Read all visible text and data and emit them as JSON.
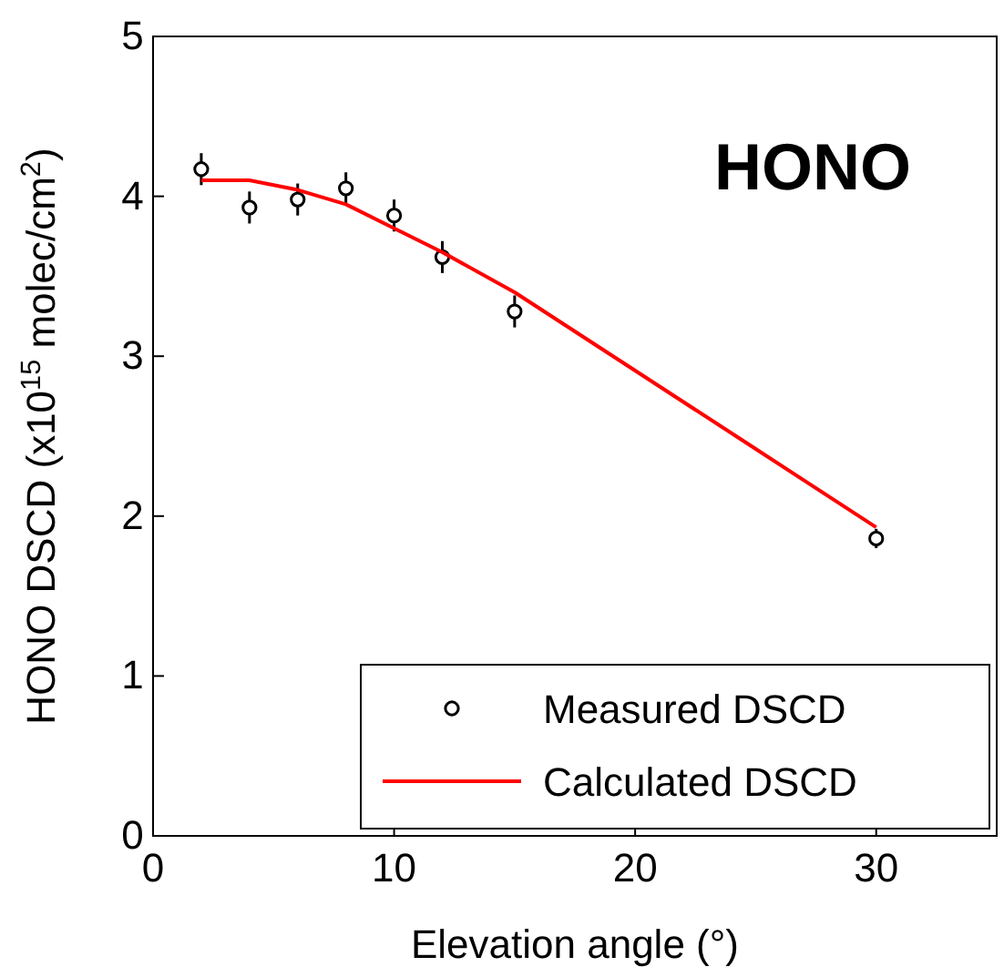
{
  "chart_data": {
    "type": "scatter",
    "xlabel": "Elevation angle (°)",
    "ylabel": "HONO DSCD (x10$^{15}$ molec/cm$^{2}$)",
    "annotations": [
      "HONO"
    ],
    "xlim": [
      0,
      35
    ],
    "xticks": [
      0,
      10,
      20,
      30
    ],
    "ylim": [
      0,
      5
    ],
    "yticks": [
      0,
      1,
      2,
      3,
      4,
      5
    ],
    "grid": false,
    "legend": "bottom right",
    "series": [
      {
        "name": "Measured DSCD",
        "color": "#000000",
        "marker": "circle",
        "x": [
          2,
          4,
          6,
          8,
          10,
          12,
          15,
          30
        ],
        "values": [
          4.17,
          3.93,
          3.98,
          4.05,
          3.88,
          3.62,
          3.28,
          1.86
        ],
        "errors": [
          0.1,
          0.1,
          0.1,
          0.1,
          0.1,
          0.1,
          0.1,
          0.06
        ]
      },
      {
        "name": "Calculated DSCD",
        "type": "line",
        "color": "#ff0000",
        "marker": "none",
        "x": [
          2,
          4,
          6,
          8,
          10,
          12,
          15,
          20,
          25,
          30
        ],
        "values": [
          4.1,
          4.1,
          4.04,
          3.95,
          3.8,
          3.65,
          3.4,
          2.91,
          2.42,
          1.93
        ]
      }
    ]
  }
}
